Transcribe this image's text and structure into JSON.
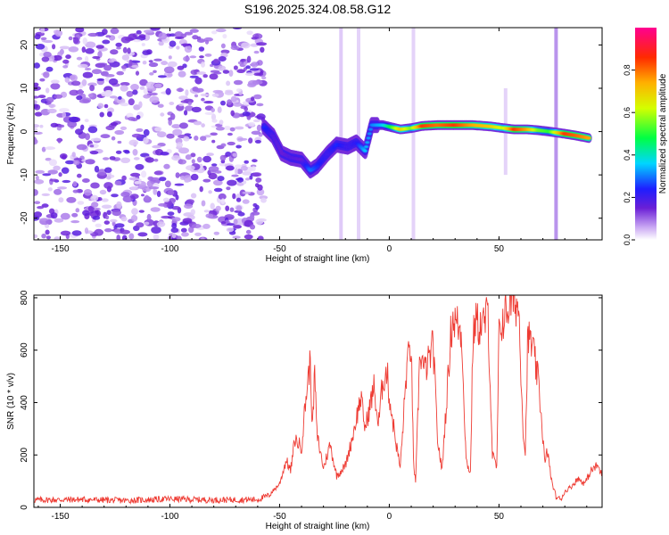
{
  "figure_title": "S196.2025.324.08.58.G12",
  "chart_data": [
    {
      "type": "heatmap",
      "name": "spectrogram",
      "xlabel": "Height of straight line (km)",
      "ylabel": "Frequency (Hz)",
      "xlim": [
        -162,
        97
      ],
      "ylim": [
        -25,
        24
      ],
      "xticks": [
        -150,
        -100,
        -50,
        0,
        50
      ],
      "yticks": [
        -20,
        -10,
        0,
        10,
        20
      ],
      "colorbar": {
        "label": "Normalized spectral amplitude",
        "range": [
          0,
          1
        ],
        "ticks": [
          "0.0",
          "0.2",
          "0.4",
          "0.6",
          "0.8"
        ]
      },
      "noise_region": {
        "x": [
          -162,
          -57
        ],
        "y": [
          -25,
          24
        ],
        "amplitude": [
          0.02,
          0.18
        ]
      },
      "signal_track": [
        {
          "x": -57,
          "y": 1.0,
          "amp": 0.25
        },
        {
          "x": -53,
          "y": -1.0,
          "amp": 0.18
        },
        {
          "x": -49,
          "y": -5.0,
          "amp": 0.15
        },
        {
          "x": -45,
          "y": -6.0,
          "amp": 0.18
        },
        {
          "x": -40,
          "y": -6.5,
          "amp": 0.16
        },
        {
          "x": -36,
          "y": -9.0,
          "amp": 0.3
        },
        {
          "x": -33,
          "y": -8.0,
          "amp": 0.25
        },
        {
          "x": -28,
          "y": -5.0,
          "amp": 0.2
        },
        {
          "x": -24,
          "y": -3.0,
          "amp": 0.25
        },
        {
          "x": -19,
          "y": -3.5,
          "amp": 0.2
        },
        {
          "x": -15,
          "y": -2.5,
          "amp": 0.22
        },
        {
          "x": -11,
          "y": -4.5,
          "amp": 0.35
        },
        {
          "x": -8,
          "y": 1.5,
          "amp": 0.3
        },
        {
          "x": -3,
          "y": 1.5,
          "amp": 0.35
        },
        {
          "x": 1,
          "y": 1.0,
          "amp": 0.5
        },
        {
          "x": 5,
          "y": 0.5,
          "amp": 0.7
        },
        {
          "x": 10,
          "y": 0.8,
          "amp": 0.55
        },
        {
          "x": 15,
          "y": 1.3,
          "amp": 0.85
        },
        {
          "x": 22,
          "y": 1.5,
          "amp": 0.8
        },
        {
          "x": 30,
          "y": 1.5,
          "amp": 0.85
        },
        {
          "x": 38,
          "y": 1.5,
          "amp": 0.75
        },
        {
          "x": 46,
          "y": 1.2,
          "amp": 0.7
        },
        {
          "x": 52,
          "y": 0.8,
          "amp": 0.6
        },
        {
          "x": 57,
          "y": 0.5,
          "amp": 0.85
        },
        {
          "x": 63,
          "y": 0.5,
          "amp": 0.75
        },
        {
          "x": 68,
          "y": 0.3,
          "amp": 0.55
        },
        {
          "x": 73,
          "y": 0.0,
          "amp": 0.5
        },
        {
          "x": 80,
          "y": -0.5,
          "amp": 0.85
        },
        {
          "x": 86,
          "y": -1.0,
          "amp": 0.8
        },
        {
          "x": 91,
          "y": -1.5,
          "amp": 0.75
        }
      ],
      "streaks": [
        {
          "x": -22,
          "y": [
            -25,
            24
          ],
          "amp": 0.06
        },
        {
          "x": -14,
          "y": [
            -25,
            24
          ],
          "amp": 0.05
        },
        {
          "x": 11,
          "y": [
            -25,
            24
          ],
          "amp": 0.05
        },
        {
          "x": 76,
          "y": [
            -25,
            24
          ],
          "amp": 0.12
        },
        {
          "x": 53,
          "y": [
            -10,
            10
          ],
          "amp": 0.05
        }
      ]
    },
    {
      "type": "line",
      "name": "snr",
      "xlabel": "Height of straight line (km)",
      "ylabel": "SNR (10 * v/v)",
      "xlim": [
        -162,
        97
      ],
      "ylim": [
        0,
        810
      ],
      "xticks": [
        -150,
        -100,
        -50,
        0,
        50
      ],
      "yticks": [
        0,
        200,
        400,
        600,
        800
      ],
      "series": [
        {
          "name": "SNR",
          "color": "#ee3b33",
          "x": [
            -162,
            -140,
            -120,
            -100,
            -80,
            -60,
            -55,
            -50,
            -47,
            -45,
            -43,
            -40,
            -38,
            -36,
            -35,
            -34,
            -33,
            -30,
            -27,
            -24,
            -20,
            -17,
            -13,
            -11,
            -9,
            -7,
            -5,
            -3,
            -1,
            0,
            3,
            5,
            8,
            10,
            11,
            12,
            14,
            16,
            18,
            20,
            22,
            24,
            27,
            28,
            29,
            31,
            33,
            35,
            37,
            38,
            39,
            41,
            43,
            45,
            47,
            49,
            50,
            51,
            53,
            55,
            57,
            59,
            61,
            62,
            63,
            64,
            66,
            67,
            68,
            70,
            71,
            72,
            74,
            76,
            78,
            80,
            83,
            86,
            89,
            92,
            95,
            97
          ],
          "y": [
            28,
            30,
            26,
            32,
            28,
            30,
            45,
            90,
            180,
            140,
            260,
            230,
            420,
            560,
            300,
            520,
            280,
            150,
            240,
            120,
            160,
            260,
            420,
            300,
            380,
            460,
            310,
            480,
            520,
            420,
            250,
            150,
            540,
            620,
            180,
            90,
            600,
            520,
            560,
            620,
            260,
            140,
            520,
            660,
            720,
            700,
            660,
            180,
            130,
            600,
            720,
            690,
            700,
            740,
            200,
            150,
            650,
            700,
            740,
            780,
            790,
            760,
            300,
            200,
            620,
            650,
            580,
            520,
            480,
            270,
            160,
            220,
            100,
            40,
            30,
            60,
            80,
            110,
            90,
            140,
            160,
            120
          ]
        }
      ]
    }
  ]
}
